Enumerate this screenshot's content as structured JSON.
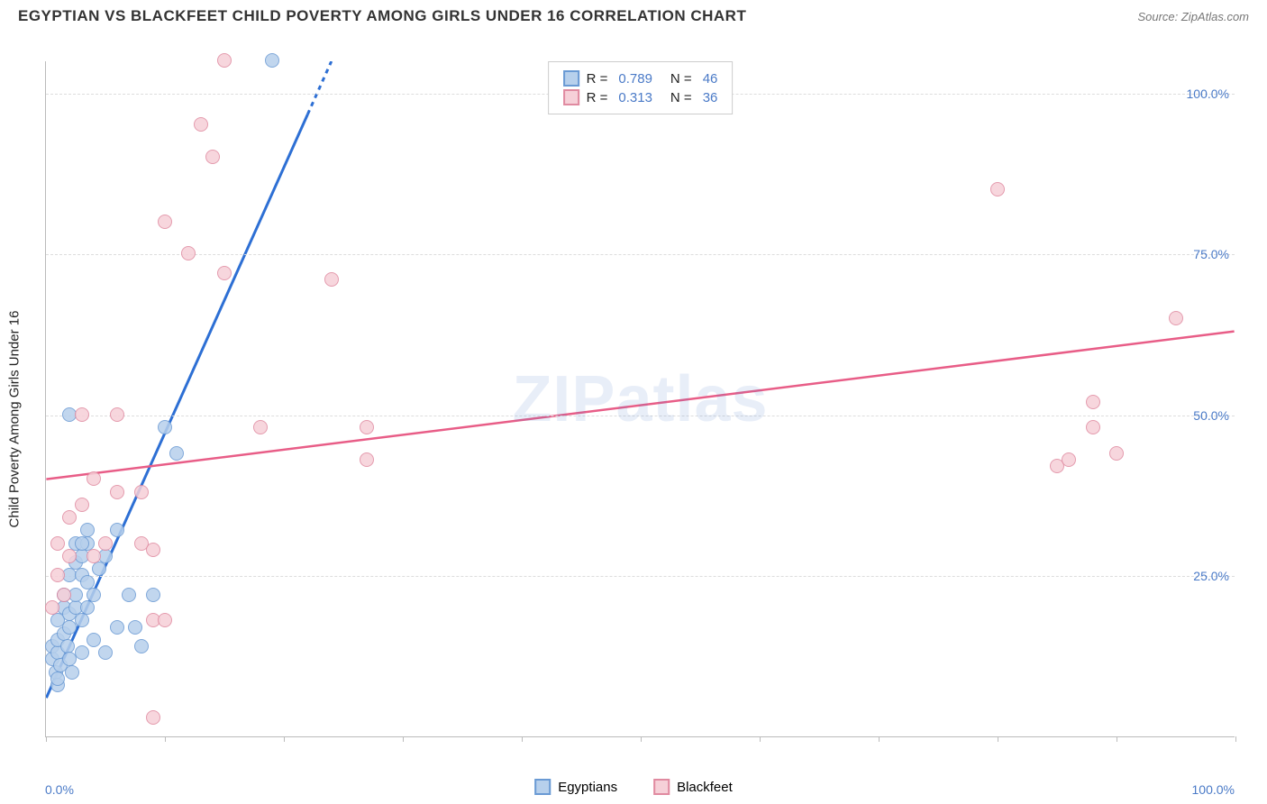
{
  "header": {
    "title": "EGYPTIAN VS BLACKFEET CHILD POVERTY AMONG GIRLS UNDER 16 CORRELATION CHART",
    "source_label": "Source: ZipAtlas.com"
  },
  "watermark": "ZIPatlas",
  "chart": {
    "type": "scatter",
    "ylabel": "Child Poverty Among Girls Under 16",
    "xlim": [
      0,
      100
    ],
    "ylim": [
      0,
      105
    ],
    "xtick_values": [
      0,
      10,
      20,
      30,
      40,
      50,
      60,
      70,
      80,
      90,
      100
    ],
    "xtick_labels": [
      "0.0%",
      "",
      "",
      "",
      "",
      "",
      "",
      "",
      "",
      "",
      "100.0%"
    ],
    "ytick_values": [
      25,
      50,
      75,
      100
    ],
    "ytick_labels": [
      "25.0%",
      "50.0%",
      "75.0%",
      "100.0%"
    ],
    "background_color": "#ffffff",
    "grid_color": "#dddddd",
    "axis_color": "#bbbbbb",
    "tick_label_color": "#4a7ac7",
    "ylabel_fontsize": 15,
    "tick_fontsize": 14,
    "marker_size": 16,
    "marker_opacity": 0.85
  },
  "series": [
    {
      "name": "Egyptians",
      "fill_color": "#b7d0ec",
      "stroke_color": "#6a9ad4",
      "trend_color": "#2d6fd4",
      "trend_width": 3,
      "R": "0.789",
      "N": "46",
      "trend_start": [
        0,
        6
      ],
      "trend_end": [
        24,
        105
      ],
      "trend_dash_after_x": 22,
      "points": [
        [
          0.5,
          12
        ],
        [
          0.5,
          14
        ],
        [
          0.8,
          10
        ],
        [
          1,
          8
        ],
        [
          1,
          13
        ],
        [
          1,
          15
        ],
        [
          1,
          18
        ],
        [
          1.2,
          11
        ],
        [
          1.5,
          16
        ],
        [
          1.5,
          20
        ],
        [
          1.5,
          22
        ],
        [
          1.8,
          14
        ],
        [
          2,
          12
        ],
        [
          2,
          17
        ],
        [
          2,
          19
        ],
        [
          2,
          25
        ],
        [
          2.2,
          10
        ],
        [
          2.5,
          20
        ],
        [
          2.5,
          22
        ],
        [
          2.5,
          27
        ],
        [
          2.5,
          30
        ],
        [
          3,
          13
        ],
        [
          3,
          18
        ],
        [
          3,
          25
        ],
        [
          3,
          28
        ],
        [
          3.5,
          20
        ],
        [
          3.5,
          24
        ],
        [
          3.5,
          30
        ],
        [
          3.5,
          32
        ],
        [
          4,
          22
        ],
        [
          4,
          15
        ],
        [
          4.5,
          26
        ],
        [
          5,
          28
        ],
        [
          5,
          13
        ],
        [
          6,
          17
        ],
        [
          6,
          32
        ],
        [
          7,
          22
        ],
        [
          7.5,
          17
        ],
        [
          8,
          14
        ],
        [
          9,
          22
        ],
        [
          10,
          48
        ],
        [
          11,
          44
        ],
        [
          2,
          50
        ],
        [
          3,
          30
        ],
        [
          19,
          105
        ],
        [
          1,
          9
        ]
      ]
    },
    {
      "name": "Blackfeet",
      "fill_color": "#f6d0d8",
      "stroke_color": "#e08aa0",
      "trend_color": "#e85d87",
      "trend_width": 2.5,
      "R": "0.313",
      "N": "36",
      "trend_start": [
        0,
        40
      ],
      "trend_end": [
        100,
        63
      ],
      "trend_dash_after_x": 100,
      "points": [
        [
          0.5,
          20
        ],
        [
          1,
          30
        ],
        [
          1,
          25
        ],
        [
          1.5,
          22
        ],
        [
          2,
          34
        ],
        [
          2,
          28
        ],
        [
          3,
          36
        ],
        [
          3,
          50
        ],
        [
          4,
          28
        ],
        [
          4,
          40
        ],
        [
          5,
          30
        ],
        [
          6,
          38
        ],
        [
          6,
          50
        ],
        [
          8,
          30
        ],
        [
          8,
          38
        ],
        [
          9,
          18
        ],
        [
          9,
          29
        ],
        [
          10,
          80
        ],
        [
          10,
          18
        ],
        [
          12,
          75
        ],
        [
          13,
          95
        ],
        [
          14,
          90
        ],
        [
          15,
          72
        ],
        [
          15,
          105
        ],
        [
          18,
          48
        ],
        [
          24,
          71
        ],
        [
          27,
          43
        ],
        [
          27,
          48
        ],
        [
          80,
          85
        ],
        [
          85,
          42
        ],
        [
          86,
          43
        ],
        [
          88,
          48
        ],
        [
          88,
          52
        ],
        [
          90,
          44
        ],
        [
          95,
          65
        ],
        [
          9,
          3
        ]
      ]
    }
  ],
  "legend_top": {
    "r_label": "R =",
    "n_label": "N ="
  },
  "legend_bottom": {
    "items": [
      "Egyptians",
      "Blackfeet"
    ]
  }
}
